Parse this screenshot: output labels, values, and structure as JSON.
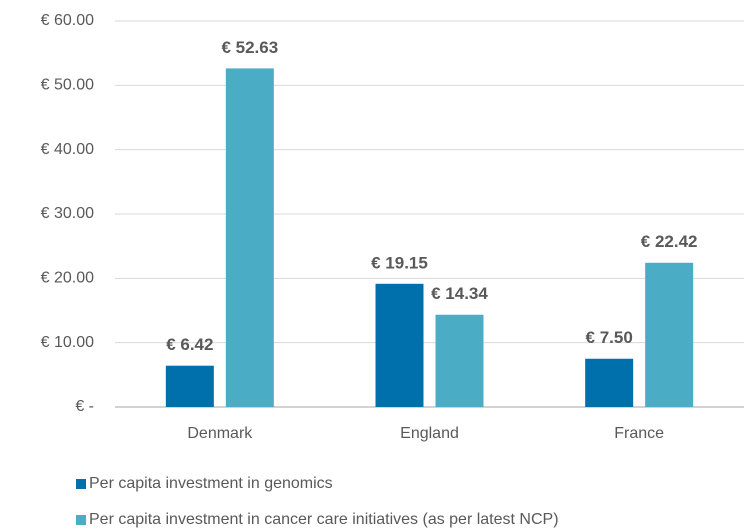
{
  "chart_data": {
    "type": "bar",
    "categories": [
      "Denmark",
      "England",
      "France"
    ],
    "series": [
      {
        "name": "Per capita investment in genomics",
        "color": "#0070ad",
        "values": [
          6.42,
          19.15,
          7.5
        ],
        "value_labels": [
          "€ 6.42",
          "€ 19.15",
          "€ 7.50"
        ]
      },
      {
        "name": "Per capita investment in cancer care initiatives (as per latest NCP)",
        "color": "#4bacc6",
        "values": [
          52.63,
          14.34,
          22.42
        ],
        "value_labels": [
          "€ 52.63",
          "€ 14.34",
          "€ 22.42"
        ]
      }
    ],
    "ylim": [
      0,
      60
    ],
    "yticks": [
      {
        "value": 0,
        "label": "€ -"
      },
      {
        "value": 10,
        "label": "€ 10.00"
      },
      {
        "value": 20,
        "label": "€ 20.00"
      },
      {
        "value": 30,
        "label": "€ 30.00"
      },
      {
        "value": 40,
        "label": "€ 40.00"
      },
      {
        "value": 50,
        "label": "€ 50.00"
      },
      {
        "value": 60,
        "label": "€ 60.00"
      }
    ],
    "grid": true,
    "legend": "bottom"
  }
}
